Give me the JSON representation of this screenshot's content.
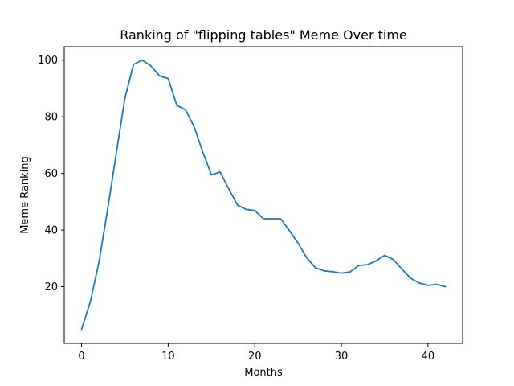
{
  "chart_data": {
    "type": "line",
    "title": "Ranking of \"flipping tables\" Meme Over time",
    "xlabel": "Months",
    "ylabel": "Meme Ranking",
    "xlim": [
      -2,
      44
    ],
    "ylim": [
      0,
      104.75
    ],
    "xticks": [
      0,
      10,
      20,
      30,
      40
    ],
    "yticks": [
      20,
      40,
      60,
      80,
      100
    ],
    "grid": false,
    "series": [
      {
        "color": "#1f77b4",
        "x": [
          0,
          1,
          2,
          3,
          4,
          5,
          6,
          7,
          8,
          9,
          10,
          11,
          12,
          13,
          14,
          15,
          16,
          17,
          18,
          19,
          20,
          21,
          22,
          23,
          24,
          25,
          26,
          27,
          28,
          29,
          30,
          31,
          32,
          33,
          34,
          35,
          36,
          37,
          38,
          39,
          40,
          41,
          42
        ],
        "y": [
          5,
          14.5,
          28.5,
          47,
          67,
          86.5,
          98.5,
          100,
          98,
          94.5,
          93.5,
          84,
          82.5,
          76.5,
          67.5,
          59.5,
          60.5,
          54.5,
          48.8,
          47.3,
          46.9,
          44,
          44,
          44,
          39.8,
          35.4,
          30.2,
          26.7,
          25.6,
          25.3,
          24.8,
          25.2,
          27.5,
          27.8,
          29.1,
          31.1,
          29.6,
          26.2,
          23,
          21.3,
          20.5,
          20.8,
          20
        ]
      }
    ]
  }
}
